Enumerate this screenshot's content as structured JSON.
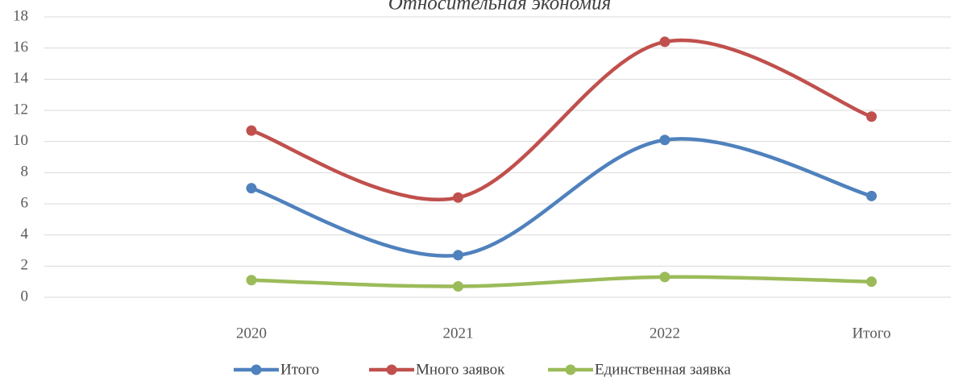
{
  "chart_data": {
    "type": "line",
    "title": "Относительная экономия",
    "categories": [
      "2020",
      "2021",
      "2022",
      "Итого"
    ],
    "series": [
      {
        "name": "Итого",
        "color": "#4f81bd",
        "values": [
          7.0,
          2.7,
          10.1,
          6.5
        ]
      },
      {
        "name": "Много заявок",
        "color": "#c0504d",
        "values": [
          10.7,
          6.4,
          16.4,
          11.6
        ]
      },
      {
        "name": "Единственная заявка",
        "color": "#9bbb59",
        "values": [
          1.1,
          0.7,
          1.3,
          1.0
        ]
      }
    ],
    "ylim": [
      0,
      18
    ],
    "yticks": [
      0,
      2,
      4,
      6,
      8,
      10,
      12,
      14,
      16,
      18
    ],
    "grid": true,
    "smooth": true,
    "legend": "bottom"
  }
}
